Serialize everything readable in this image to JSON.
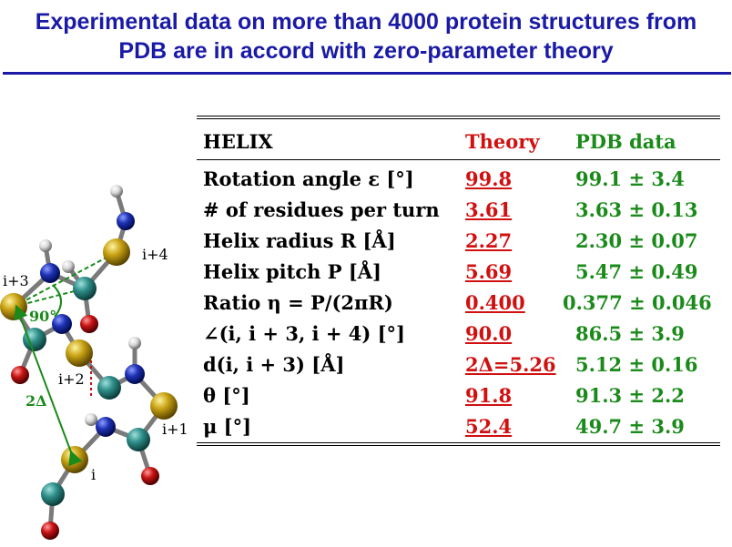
{
  "slide": {
    "title_line1": "Experimental data on more than 4000 protein structures from",
    "title_line2": "PDB are in accord with zero-parameter theory"
  },
  "molecule": {
    "labels": {
      "i": "i",
      "i1": "i+1",
      "i2": "i+2",
      "i3": "i+3",
      "i4": "i+4",
      "angle": "90°",
      "distance": "2Δ"
    },
    "colors": {
      "sulfur": "#c8a214",
      "nitrogen": "#1f33b5",
      "carbon": "#2f8f8a",
      "oxygen": "#c81414",
      "hydrogen": "#d8d8d8",
      "green": "#1a8a1a"
    }
  },
  "table": {
    "headers": {
      "name": "HELIX",
      "theory": "Theory",
      "pdb": "PDB data"
    },
    "rows": [
      {
        "name": "Rotation angle ε [°]",
        "theory": "99.8",
        "pdb": "99.1 ± 3.4"
      },
      {
        "name": "# of residues per turn",
        "theory": "3.61",
        "pdb": "3.63 ± 0.13"
      },
      {
        "name": "Helix radius R [Å]",
        "theory": "2.27",
        "pdb": "2.30 ± 0.07"
      },
      {
        "name": "Helix pitch P [Å]",
        "theory": "5.69",
        "pdb": "5.47 ± 0.49"
      },
      {
        "name": "Ratio η = P/(2πR)",
        "theory": "0.400",
        "pdb": "0.377 ± 0.046"
      },
      {
        "name": "∠(i, i + 3, i + 4) [°]",
        "theory": "90.0",
        "pdb": "86.5 ± 3.9"
      },
      {
        "name": "d(i, i + 3) [Å]",
        "theory": "2Δ=5.26",
        "pdb": "5.12 ± 0.16"
      },
      {
        "name": "θ [°]",
        "theory": "91.8",
        "pdb": "91.3 ± 2.2"
      },
      {
        "name": "μ [°]",
        "theory": "52.4",
        "pdb": "49.7 ± 3.9"
      }
    ],
    "colors": {
      "theory": "#d11010",
      "pdb": "#1a8a1a"
    }
  }
}
